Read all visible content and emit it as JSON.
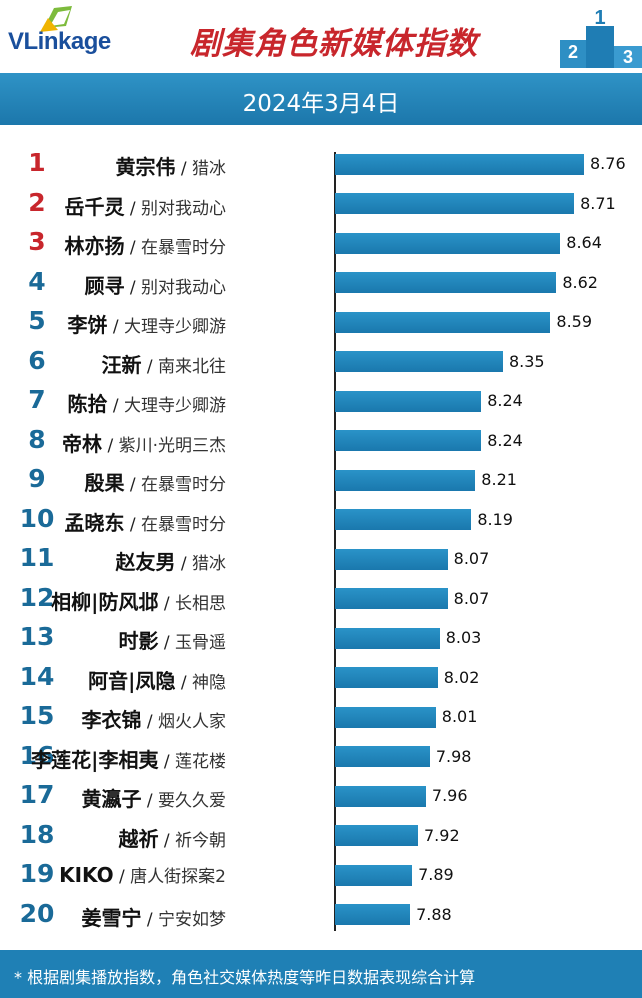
{
  "header": {
    "logo_text": "VLinkage",
    "title": "剧集角色新媒体指数",
    "podium_labels": [
      "2",
      "1",
      "3"
    ]
  },
  "date": "2024年3月4日",
  "chart_data": {
    "type": "bar",
    "orientation": "horizontal",
    "title": "剧集角色新媒体指数",
    "subtitle": "2024年3月4日",
    "xlim": [
      7.5,
      8.8
    ],
    "categories": [
      {
        "rank": "1",
        "name": "黄宗伟",
        "drama": "猎冰"
      },
      {
        "rank": "2",
        "name": "岳千灵",
        "drama": "别对我动心"
      },
      {
        "rank": "3",
        "name": "林亦扬",
        "drama": "在暴雪时分"
      },
      {
        "rank": "4",
        "name": "顾寻",
        "drama": "别对我动心"
      },
      {
        "rank": "5",
        "name": "李饼",
        "drama": "大理寺少卿游"
      },
      {
        "rank": "6",
        "name": "汪新",
        "drama": "南来北往"
      },
      {
        "rank": "7",
        "name": "陈拾",
        "drama": "大理寺少卿游"
      },
      {
        "rank": "8",
        "name": "帝林",
        "drama": "紫川·光明三杰"
      },
      {
        "rank": "9",
        "name": "殷果",
        "drama": "在暴雪时分"
      },
      {
        "rank": "10",
        "name": "孟晓东",
        "drama": "在暴雪时分"
      },
      {
        "rank": "11",
        "name": "赵友男",
        "drama": "猎冰"
      },
      {
        "rank": "12",
        "name": "相柳|防风邶",
        "drama": "长相思"
      },
      {
        "rank": "13",
        "name": "时影",
        "drama": "玉骨遥"
      },
      {
        "rank": "14",
        "name": "阿音|凤隐",
        "drama": "神隐"
      },
      {
        "rank": "15",
        "name": "李衣锦",
        "drama": "烟火人家"
      },
      {
        "rank": "16",
        "name": "李莲花|李相夷",
        "drama": "莲花楼"
      },
      {
        "rank": "17",
        "name": "黄瀛子",
        "drama": "要久久爱"
      },
      {
        "rank": "18",
        "name": "越祈",
        "drama": "祈今朝"
      },
      {
        "rank": "19",
        "name": "KIKO",
        "drama": "唐人街探案2"
      },
      {
        "rank": "20",
        "name": "姜雪宁",
        "drama": "宁安如梦"
      }
    ],
    "values": [
      8.76,
      8.71,
      8.64,
      8.62,
      8.59,
      8.35,
      8.24,
      8.24,
      8.21,
      8.19,
      8.07,
      8.07,
      8.03,
      8.02,
      8.01,
      7.98,
      7.96,
      7.92,
      7.89,
      7.88
    ],
    "value_labels": [
      "8.76",
      "8.71",
      "8.64",
      "8.62",
      "8.59",
      "8.35",
      "8.24",
      "8.24",
      "8.21",
      "8.19",
      "8.07",
      "8.07",
      "8.03",
      "8.02",
      "8.01",
      "7.98",
      "7.96",
      "7.92",
      "7.89",
      "7.88"
    ],
    "separator": "/",
    "colors": {
      "top3_rank": "#c8262c",
      "rank": "#1a6a98",
      "bar": "#1f82b8"
    }
  },
  "footer": {
    "note": "* 根据剧集播放指数，角色社交媒体热度等昨日数据表现综合计算"
  }
}
